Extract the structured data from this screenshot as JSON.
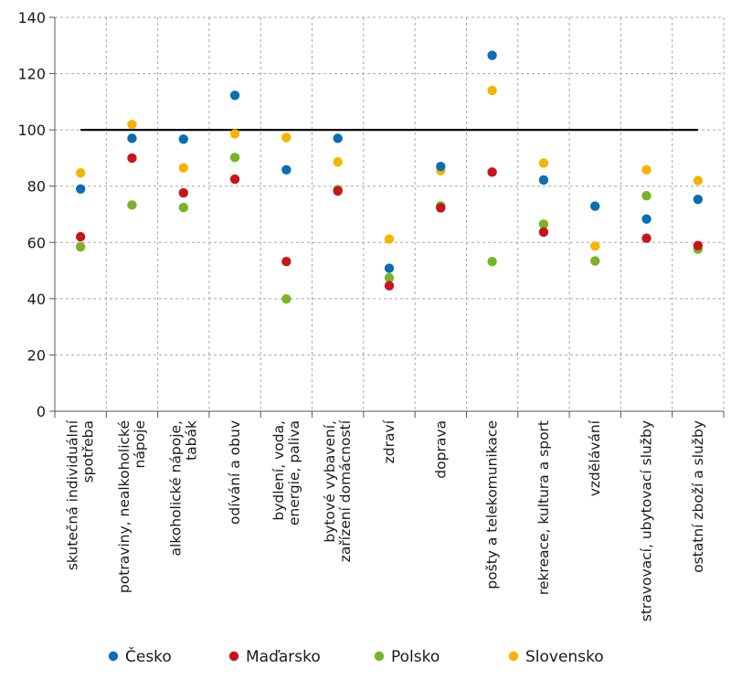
{
  "chart_data": {
    "type": "scatter",
    "title": "",
    "xlabel": "",
    "ylabel": "",
    "ylim": [
      0,
      140
    ],
    "yticks": [
      0,
      20,
      40,
      60,
      80,
      100,
      120,
      140
    ],
    "grid": true,
    "reference_line": 100,
    "legend_position": "bottom",
    "categories": [
      [
        "skutečná individuální",
        "spotřeba"
      ],
      [
        "potraviny, nealkoholické",
        "nápoje"
      ],
      [
        "alkoholické nápoje,",
        "tabák"
      ],
      [
        "odívání a obuv"
      ],
      [
        "bydlení, voda,",
        "energie, paliva"
      ],
      [
        "bytové vybavení,",
        "zařízení domácností"
      ],
      [
        "zdraví"
      ],
      [
        "doprava"
      ],
      [
        "pošty a telekomunikace"
      ],
      [
        "rekreace, kultura a sport"
      ],
      [
        "vzdělávání"
      ],
      [
        "stravovací, ubytovací služby"
      ],
      [
        "ostatní zboží a služby"
      ]
    ],
    "series": [
      {
        "name": "Česko",
        "color": "#0a6eb4",
        "values": [
          79,
          97,
          96.7,
          112.3,
          85.8,
          97,
          50.8,
          87,
          126.5,
          82.2,
          72.9,
          68.3,
          75.3
        ]
      },
      {
        "name": "Maďarsko",
        "color": "#c8141e",
        "values": [
          62,
          90,
          77.6,
          82.5,
          53.2,
          78.3,
          44.6,
          72.3,
          85,
          63.7,
          null,
          61.5,
          58.9
        ]
      },
      {
        "name": "Polsko",
        "color": "#78b428",
        "values": [
          58.4,
          73.3,
          72.4,
          90.2,
          39.9,
          78.8,
          47.4,
          73,
          53.2,
          66.5,
          53.4,
          76.6,
          57.6
        ]
      },
      {
        "name": "Slovensko",
        "color": "#f5b400",
        "values": [
          84.7,
          101.9,
          86.5,
          98.6,
          97.3,
          88.6,
          61.2,
          85.5,
          114,
          88.2,
          58.7,
          85.8,
          82
        ]
      }
    ]
  }
}
